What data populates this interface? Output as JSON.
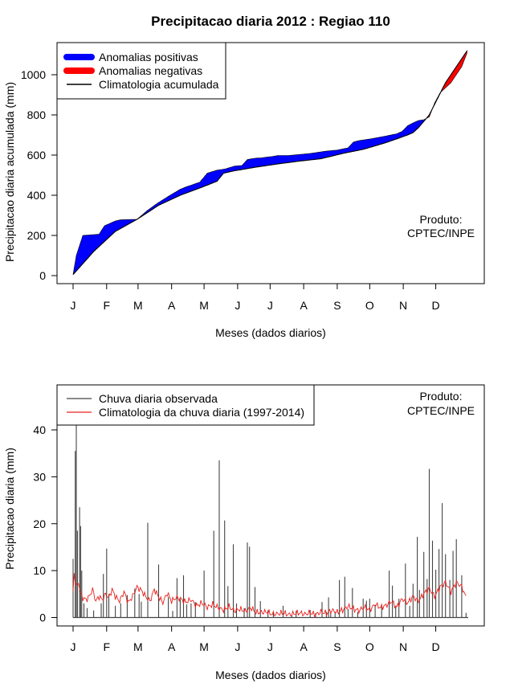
{
  "title": "Precipitacao diaria 2012 : Regiao 110",
  "colors": {
    "positive": "#0000ff",
    "negative": "#ff0000",
    "climatology": "#000000",
    "rain": "#444444",
    "clim_rain": "#e8201c"
  },
  "chart_data": [
    {
      "type": "area",
      "ylabel": "Precipitacao diaria acumulada (mm)",
      "xlabel": "Meses (dados diarios)",
      "month_labels": [
        "J",
        "F",
        "M",
        "A",
        "M",
        "J",
        "J",
        "A",
        "S",
        "O",
        "N",
        "D"
      ],
      "ylim": [
        0,
        1130
      ],
      "yticks": [
        0,
        200,
        400,
        600,
        800,
        1000
      ],
      "legend": [
        "Anomalias positivas",
        "Anomalias negativas",
        "Climatologia acumulada"
      ],
      "annotation": [
        "Produto:",
        "CPTEC/INPE"
      ],
      "observed_cumulative": {
        "day": [
          1,
          4,
          10,
          15,
          25,
          30,
          40,
          45,
          60,
          70,
          80,
          90,
          100,
          106,
          110,
          114,
          118,
          125,
          134,
          138,
          142,
          150,
          157,
          162,
          170,
          175,
          180,
          185,
          190,
          200,
          220,
          235,
          245,
          255,
          260,
          265,
          275,
          283,
          290,
          300,
          305,
          310,
          315,
          320,
          325,
          330,
          335,
          340,
          350,
          360,
          365
        ],
        "mm": [
          5,
          100,
          200,
          202,
          206,
          248,
          272,
          278,
          280,
          326,
          364,
          398,
          430,
          443,
          450,
          458,
          465,
          510,
          525,
          528,
          532,
          545,
          548,
          578,
          585,
          586,
          590,
          593,
          598,
          598,
          608,
          620,
          625,
          636,
          665,
          672,
          680,
          688,
          695,
          706,
          718,
          746,
          760,
          772,
          776,
          790,
          860,
          910,
          960,
          1040,
          1110
        ]
      },
      "climatology_cumulative": {
        "day": [
          1,
          20,
          40,
          60,
          80,
          100,
          120,
          134,
          140,
          150,
          170,
          190,
          210,
          230,
          250,
          270,
          290,
          310,
          315,
          320,
          330,
          345,
          365
        ],
        "mm": [
          5,
          120,
          220,
          280,
          350,
          400,
          440,
          470,
          510,
          522,
          540,
          556,
          570,
          582,
          608,
          630,
          662,
          700,
          712,
          736,
          800,
          960,
          1120
        ]
      }
    },
    {
      "type": "bar",
      "ylabel": "Precipitacao diaria (mm)",
      "xlabel": "Meses (dados diarios)",
      "month_labels": [
        "J",
        "F",
        "M",
        "A",
        "M",
        "J",
        "J",
        "A",
        "S",
        "O",
        "N",
        "D"
      ],
      "ylim": [
        0,
        40
      ],
      "yticks": [
        0,
        10,
        20,
        30,
        40
      ],
      "legend": [
        "Chuva diaria observada",
        "Climatologia da chuva diaria (1997-2014)"
      ],
      "annotation": [
        "Produto:",
        "CPTEC/INPE"
      ],
      "observed_rain_peaks": {
        "day": [
          1,
          3,
          4,
          5,
          7,
          8,
          9,
          11,
          14,
          20,
          27,
          29,
          32,
          34,
          40,
          45,
          51,
          58,
          62,
          64,
          70,
          80,
          89,
          93,
          97,
          100,
          103,
          106,
          110,
          114,
          122,
          131,
          136,
          141,
          144,
          149,
          152,
          159,
          162,
          164,
          169,
          174,
          181,
          186,
          195,
          203,
          207,
          220,
          225,
          231,
          235,
          237,
          239,
          243,
          247,
          252,
          255,
          259,
          264,
          269,
          272,
          275,
          280,
          286,
          293,
          296,
          299,
          302,
          308,
          312,
          315,
          319,
          321,
          325,
          328,
          330,
          333,
          336,
          339,
          342,
          345,
          349,
          352,
          355,
          360,
          364
        ],
        "mm": [
          12.5,
          35.5,
          41,
          18.5,
          23.5,
          19.5,
          10,
          3,
          2,
          1.5,
          3,
          9.3,
          14.7,
          5,
          2.5,
          3,
          4.8,
          6.2,
          5,
          3.4,
          20.2,
          11.3,
          4.4,
          1.4,
          8.4,
          4,
          9,
          2.8,
          3,
          3.3,
          10,
          18.5,
          33.5,
          20.7,
          6.7,
          15.6,
          3,
          2,
          16,
          15.1,
          6.5,
          3.5,
          1.5,
          1,
          2.5,
          0.6,
          1.4,
          1.6,
          0.9,
          3.3,
          1.2,
          4.3,
          1.2,
          1.2,
          8,
          8.7,
          1.8,
          6.3,
          1.2,
          4,
          3.6,
          4,
          2.7,
          2.3,
          10,
          6.8,
          2.3,
          4,
          11.5,
          2.5,
          7.2,
          17.2,
          5.9,
          14,
          8.2,
          31.7,
          16.4,
          10.2,
          14.6,
          24.4,
          13.5,
          8,
          14.2,
          16.7,
          9,
          1
        ]
      },
      "climatology_daily": {
        "day": [
          1,
          2,
          4,
          6,
          8,
          10,
          13,
          16,
          19,
          22,
          25,
          28,
          31,
          34,
          37,
          40,
          44,
          48,
          52,
          56,
          60,
          64,
          68,
          72,
          76,
          80,
          84,
          88,
          92,
          96,
          100,
          105,
          110,
          115,
          120,
          125,
          130,
          135,
          140,
          145,
          150,
          155,
          160,
          165,
          170,
          175,
          180,
          185,
          190,
          195,
          200,
          205,
          210,
          215,
          220,
          225,
          230,
          235,
          240,
          245,
          250,
          255,
          260,
          265,
          270,
          275,
          280,
          285,
          290,
          295,
          300,
          305,
          310,
          315,
          320,
          325,
          330,
          335,
          340,
          345,
          350,
          355,
          360,
          364
        ],
        "mm": [
          5.5,
          9.3,
          6.5,
          7.5,
          5,
          4.2,
          3.8,
          4.5,
          6,
          3.5,
          4.5,
          3.8,
          5,
          4.2,
          6,
          4.5,
          3.5,
          5.5,
          3.2,
          4.5,
          6.5,
          5.8,
          4.5,
          3.5,
          6,
          4.4,
          3.2,
          5.2,
          3.5,
          4.2,
          4,
          3.3,
          3.8,
          2.5,
          3.1,
          2.2,
          2.8,
          2.1,
          1.6,
          2.3,
          1.4,
          1.8,
          1.3,
          2.1,
          1.1,
          1.1,
          1.2,
          0.7,
          0.8,
          1,
          0.6,
          0.8,
          1,
          0.7,
          1,
          0.6,
          1.2,
          0.9,
          1.5,
          1.1,
          1.6,
          2.4,
          1.8,
          1.5,
          2.2,
          1.6,
          2.8,
          2.1,
          2.6,
          3.4,
          2.2,
          4,
          3.1,
          4.5,
          3.5,
          5.1,
          6.2,
          4.5,
          6.5,
          7.5,
          5.5,
          7.5,
          6.6,
          4.3
        ]
      }
    }
  ]
}
